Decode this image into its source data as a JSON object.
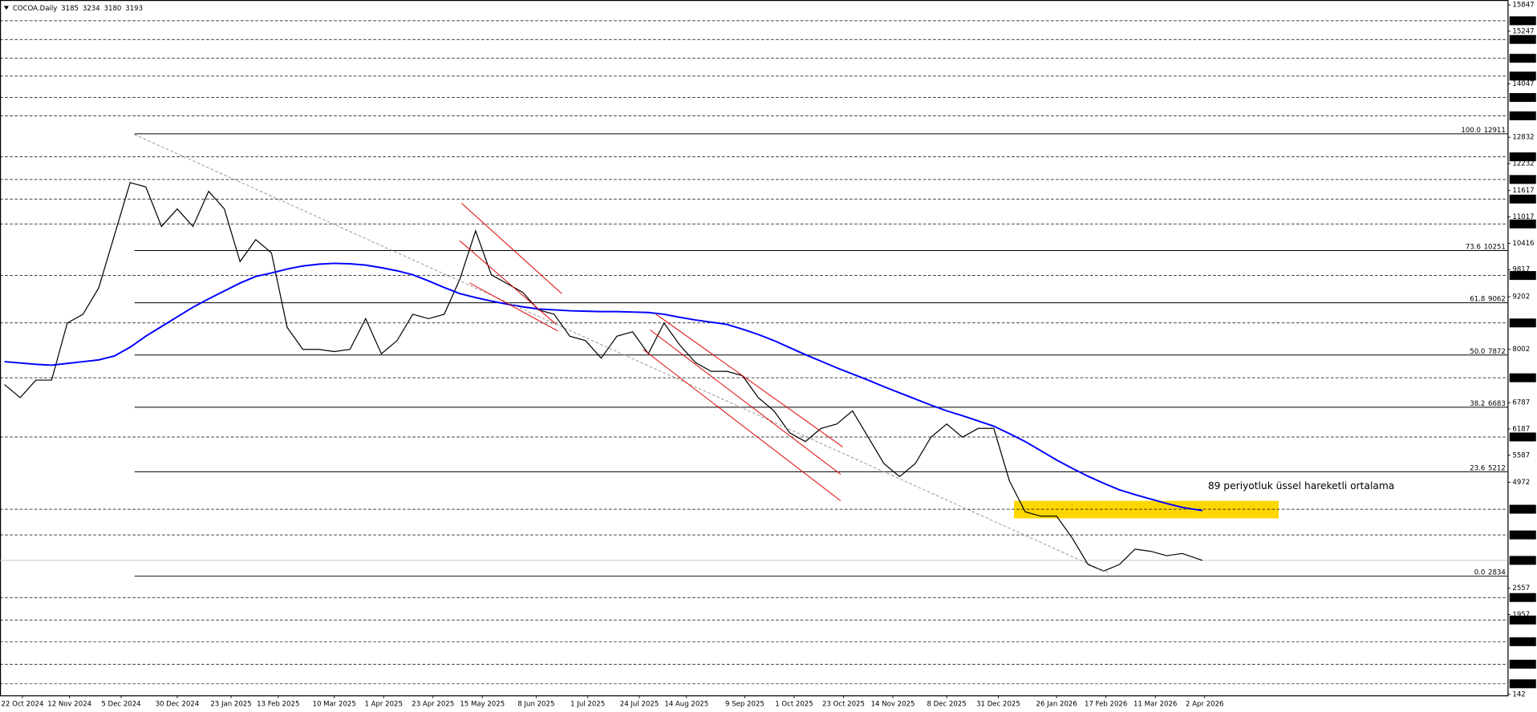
{
  "chart_data": {
    "type": "line",
    "symbol": "COCOA.Daily",
    "ohlc": [
      3185,
      3234,
      3180,
      3193
    ],
    "annotation": "89 periyotluk üssel hareketli ortalama",
    "xlim": [
      "2024-10-12",
      "2026-08-15"
    ],
    "ylim": [
      142,
      15847
    ],
    "xticks": [
      {
        "value": "2024-10-22",
        "label": "22 Oct 2024"
      },
      {
        "value": "2024-11-12",
        "label": "12 Nov 2024"
      },
      {
        "value": "2024-12-05",
        "label": "5 Dec 2024"
      },
      {
        "value": "2024-12-30",
        "label": "30 Dec 2024"
      },
      {
        "value": "2025-01-23",
        "label": "23 Jan 2025"
      },
      {
        "value": "2025-02-13",
        "label": "13 Feb 2025"
      },
      {
        "value": "2025-03-10",
        "label": "10 Mar 2025"
      },
      {
        "value": "2025-04-01",
        "label": "1 Apr 2025"
      },
      {
        "value": "2025-04-23",
        "label": "23 Apr 2025"
      },
      {
        "value": "2025-05-15",
        "label": "15 May 2025"
      },
      {
        "value": "2025-06-08",
        "label": "8 Jun 2025"
      },
      {
        "value": "2025-07-01",
        "label": "1 Jul 2025"
      },
      {
        "value": "2025-07-24",
        "label": "24 Jul 2025"
      },
      {
        "value": "2025-08-14",
        "label": "14 Aug 2025"
      },
      {
        "value": "2025-09-09",
        "label": "9 Sep 2025"
      },
      {
        "value": "2025-10-01",
        "label": "1 Oct 2025"
      },
      {
        "value": "2025-10-23",
        "label": "23 Oct 2025"
      },
      {
        "value": "2025-11-14",
        "label": "14 Nov 2025"
      },
      {
        "value": "2025-12-08",
        "label": "8 Dec 2025"
      },
      {
        "value": "2025-12-31",
        "label": "31 Dec 2025"
      },
      {
        "value": "2026-01-26",
        "label": "26 Jan 2026"
      },
      {
        "value": "2026-02-17",
        "label": "17 Feb 2026"
      },
      {
        "value": "2026-03-11",
        "label": "11 Mar 2026"
      },
      {
        "value": "2026-04-02",
        "label": "2 Apr 2026"
      }
    ],
    "yticks": [
      15847,
      15247,
      14047,
      12832,
      12232,
      11617,
      11017,
      10416,
      9817,
      9202,
      8002,
      6787,
      6187,
      5587,
      4972,
      2557,
      1957,
      142
    ],
    "levels": [
      15486,
      15060,
      14631,
      14226,
      13738,
      13320,
      12386,
      11870,
      11424,
      10858,
      9683,
      8602,
      7353,
      6005,
      4359,
      3773,
      2347,
      1835,
      1341,
      829,
      382
    ],
    "fib": [
      {
        "ratio": "100.0",
        "price": 12911
      },
      {
        "ratio": "73.6",
        "price": 10251
      },
      {
        "ratio": "61.8",
        "price": 9062
      },
      {
        "ratio": "50.0",
        "price": 7872
      },
      {
        "ratio": "38.2",
        "price": 6683
      },
      {
        "ratio": "23.6",
        "price": 5212
      },
      {
        "ratio": "0.0",
        "price": 2834
      }
    ],
    "zone": {
      "x": [
        "2026-01-07",
        "2026-05-05"
      ],
      "y": [
        4150,
        4550
      ],
      "color": "#ffd700"
    },
    "x": [
      "2024-10-14",
      "2024-10-21",
      "2024-10-28",
      "2024-11-04",
      "2024-11-11",
      "2024-11-18",
      "2024-11-25",
      "2024-12-02",
      "2024-12-09",
      "2024-12-16",
      "2024-12-23",
      "2024-12-30",
      "2025-01-06",
      "2025-01-13",
      "2025-01-20",
      "2025-01-27",
      "2025-02-03",
      "2025-02-10",
      "2025-02-17",
      "2025-02-24",
      "2025-03-03",
      "2025-03-10",
      "2025-03-17",
      "2025-03-24",
      "2025-03-31",
      "2025-04-07",
      "2025-04-14",
      "2025-04-21",
      "2025-04-28",
      "2025-05-05",
      "2025-05-12",
      "2025-05-19",
      "2025-05-26",
      "2025-06-02",
      "2025-06-09",
      "2025-06-16",
      "2025-06-23",
      "2025-06-30",
      "2025-07-07",
      "2025-07-14",
      "2025-07-21",
      "2025-07-28",
      "2025-08-04",
      "2025-08-11",
      "2025-08-18",
      "2025-08-25",
      "2025-09-01",
      "2025-09-08",
      "2025-09-15",
      "2025-09-22",
      "2025-09-29",
      "2025-10-06",
      "2025-10-13",
      "2025-10-20",
      "2025-10-27",
      "2025-11-03",
      "2025-11-10",
      "2025-11-17",
      "2025-11-24",
      "2025-12-01",
      "2025-12-08",
      "2025-12-15",
      "2025-12-22",
      "2025-12-29",
      "2026-01-05",
      "2026-01-12",
      "2026-01-19",
      "2026-01-26",
      "2026-02-02",
      "2026-02-09",
      "2026-02-16",
      "2026-02-23",
      "2026-03-02",
      "2026-03-09",
      "2026-03-16",
      "2026-03-23",
      "2026-04-01"
    ],
    "series": [
      {
        "color": "#000000",
        "values": [
          7200,
          6900,
          7300,
          7300,
          8600,
          8800,
          9400,
          10600,
          11800,
          11700,
          10800,
          11200,
          10800,
          11600,
          11200,
          10000,
          10500,
          10200,
          8500,
          8000,
          8000,
          7950,
          8000,
          8700,
          7900,
          8200,
          8800,
          8700,
          8800,
          9600,
          10700,
          9700,
          9500,
          9300,
          8900,
          8800,
          8300,
          8200,
          7800,
          8300,
          8400,
          7900,
          8600,
          8100,
          7700,
          7500,
          7500,
          7400,
          6900,
          6600,
          6100,
          5900,
          6200,
          6300,
          6600,
          6000,
          5400,
          5100,
          5400,
          6000,
          6300,
          6000,
          6200,
          6200,
          5000,
          4300,
          4200,
          4200,
          3700,
          3100,
          2950,
          3100,
          3450,
          3400,
          3300,
          3350,
          3193
        ]
      },
      {
        "color": "#0000ff",
        "values": [
          7720,
          7690,
          7660,
          7640,
          7680,
          7720,
          7760,
          7850,
          8050,
          8300,
          8520,
          8740,
          8960,
          9150,
          9330,
          9510,
          9660,
          9740,
          9830,
          9900,
          9940,
          9960,
          9950,
          9920,
          9860,
          9790,
          9700,
          9560,
          9410,
          9270,
          9180,
          9100,
          9030,
          8970,
          8920,
          8900,
          8880,
          8870,
          8860,
          8860,
          8850,
          8840,
          8800,
          8730,
          8670,
          8620,
          8570,
          8460,
          8340,
          8200,
          8040,
          7880,
          7730,
          7580,
          7440,
          7300,
          7150,
          7010,
          6870,
          6730,
          6600,
          6490,
          6370,
          6250,
          6080,
          5900,
          5690,
          5480,
          5290,
          5110,
          4950,
          4800,
          4690,
          4590,
          4490,
          4400,
          4327
        ]
      }
    ]
  }
}
